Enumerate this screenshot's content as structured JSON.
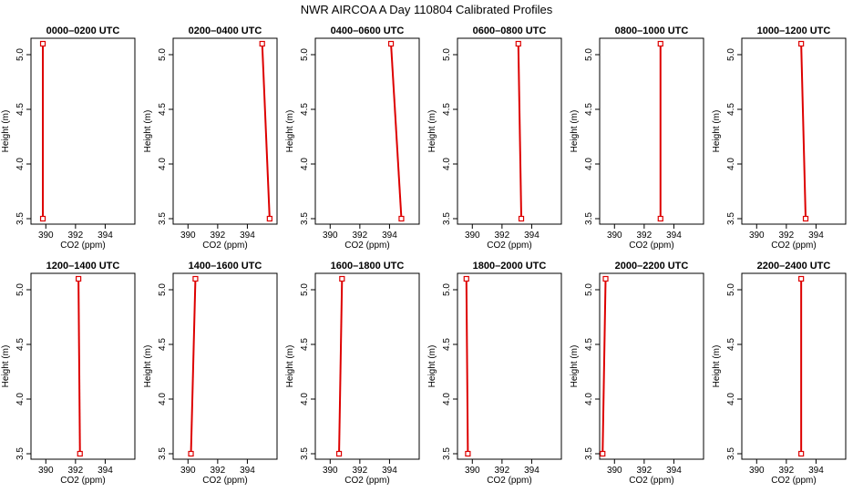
{
  "figure": {
    "title": "NWR AIRCOA A  Day 110804  Calibrated Profiles"
  },
  "colors": {
    "series": "#dd0000",
    "axis": "#000000",
    "background": "#ffffff"
  },
  "chart_data": {
    "type": "line",
    "layout": "2 rows x 6 columns of small-multiple profile plots",
    "xlabel": "CO2 (ppm)",
    "ylabel": "Height (m)",
    "xlim": [
      389,
      396
    ],
    "ylim": [
      3.45,
      5.15
    ],
    "xticks": [
      390,
      392,
      394
    ],
    "xtick_labels": [
      "390",
      "392",
      "394"
    ],
    "yticks": [
      3.5,
      4.0,
      4.5,
      5.0
    ],
    "ytick_labels": [
      "3.5",
      "4.0",
      "4.5",
      "5.0"
    ],
    "grid": false,
    "legend": "none",
    "panels": [
      {
        "title": "0000–0200 UTC",
        "points": [
          {
            "x": 389.8,
            "y": 3.5
          },
          {
            "x": 389.8,
            "y": 5.1
          }
        ]
      },
      {
        "title": "0200–0400 UTC",
        "points": [
          {
            "x": 395.5,
            "y": 3.5
          },
          {
            "x": 395.0,
            "y": 5.1
          }
        ]
      },
      {
        "title": "0400–0600 UTC",
        "points": [
          {
            "x": 394.8,
            "y": 3.5
          },
          {
            "x": 394.1,
            "y": 5.1
          }
        ]
      },
      {
        "title": "0600–0800 UTC",
        "points": [
          {
            "x": 393.3,
            "y": 3.5
          },
          {
            "x": 393.1,
            "y": 5.1
          }
        ]
      },
      {
        "title": "0800–1000 UTC",
        "points": [
          {
            "x": 393.1,
            "y": 3.5
          },
          {
            "x": 393.1,
            "y": 5.1
          }
        ]
      },
      {
        "title": "1000–1200 UTC",
        "points": [
          {
            "x": 393.3,
            "y": 3.5
          },
          {
            "x": 393.0,
            "y": 5.1
          }
        ]
      },
      {
        "title": "1200–1400 UTC",
        "points": [
          {
            "x": 392.3,
            "y": 3.5
          },
          {
            "x": 392.2,
            "y": 5.1
          }
        ]
      },
      {
        "title": "1400–1600 UTC",
        "points": [
          {
            "x": 390.2,
            "y": 3.5
          },
          {
            "x": 390.5,
            "y": 5.1
          }
        ]
      },
      {
        "title": "1600–1800 UTC",
        "points": [
          {
            "x": 390.6,
            "y": 3.5
          },
          {
            "x": 390.8,
            "y": 5.1
          }
        ]
      },
      {
        "title": "1800–2000 UTC",
        "points": [
          {
            "x": 389.7,
            "y": 3.5
          },
          {
            "x": 389.6,
            "y": 5.1
          }
        ]
      },
      {
        "title": "2000–2200 UTC",
        "points": [
          {
            "x": 389.2,
            "y": 3.5
          },
          {
            "x": 389.4,
            "y": 5.1
          }
        ]
      },
      {
        "title": "2200–2400 UTC",
        "points": [
          {
            "x": 393.0,
            "y": 3.5
          },
          {
            "x": 393.0,
            "y": 5.1
          }
        ]
      }
    ]
  }
}
